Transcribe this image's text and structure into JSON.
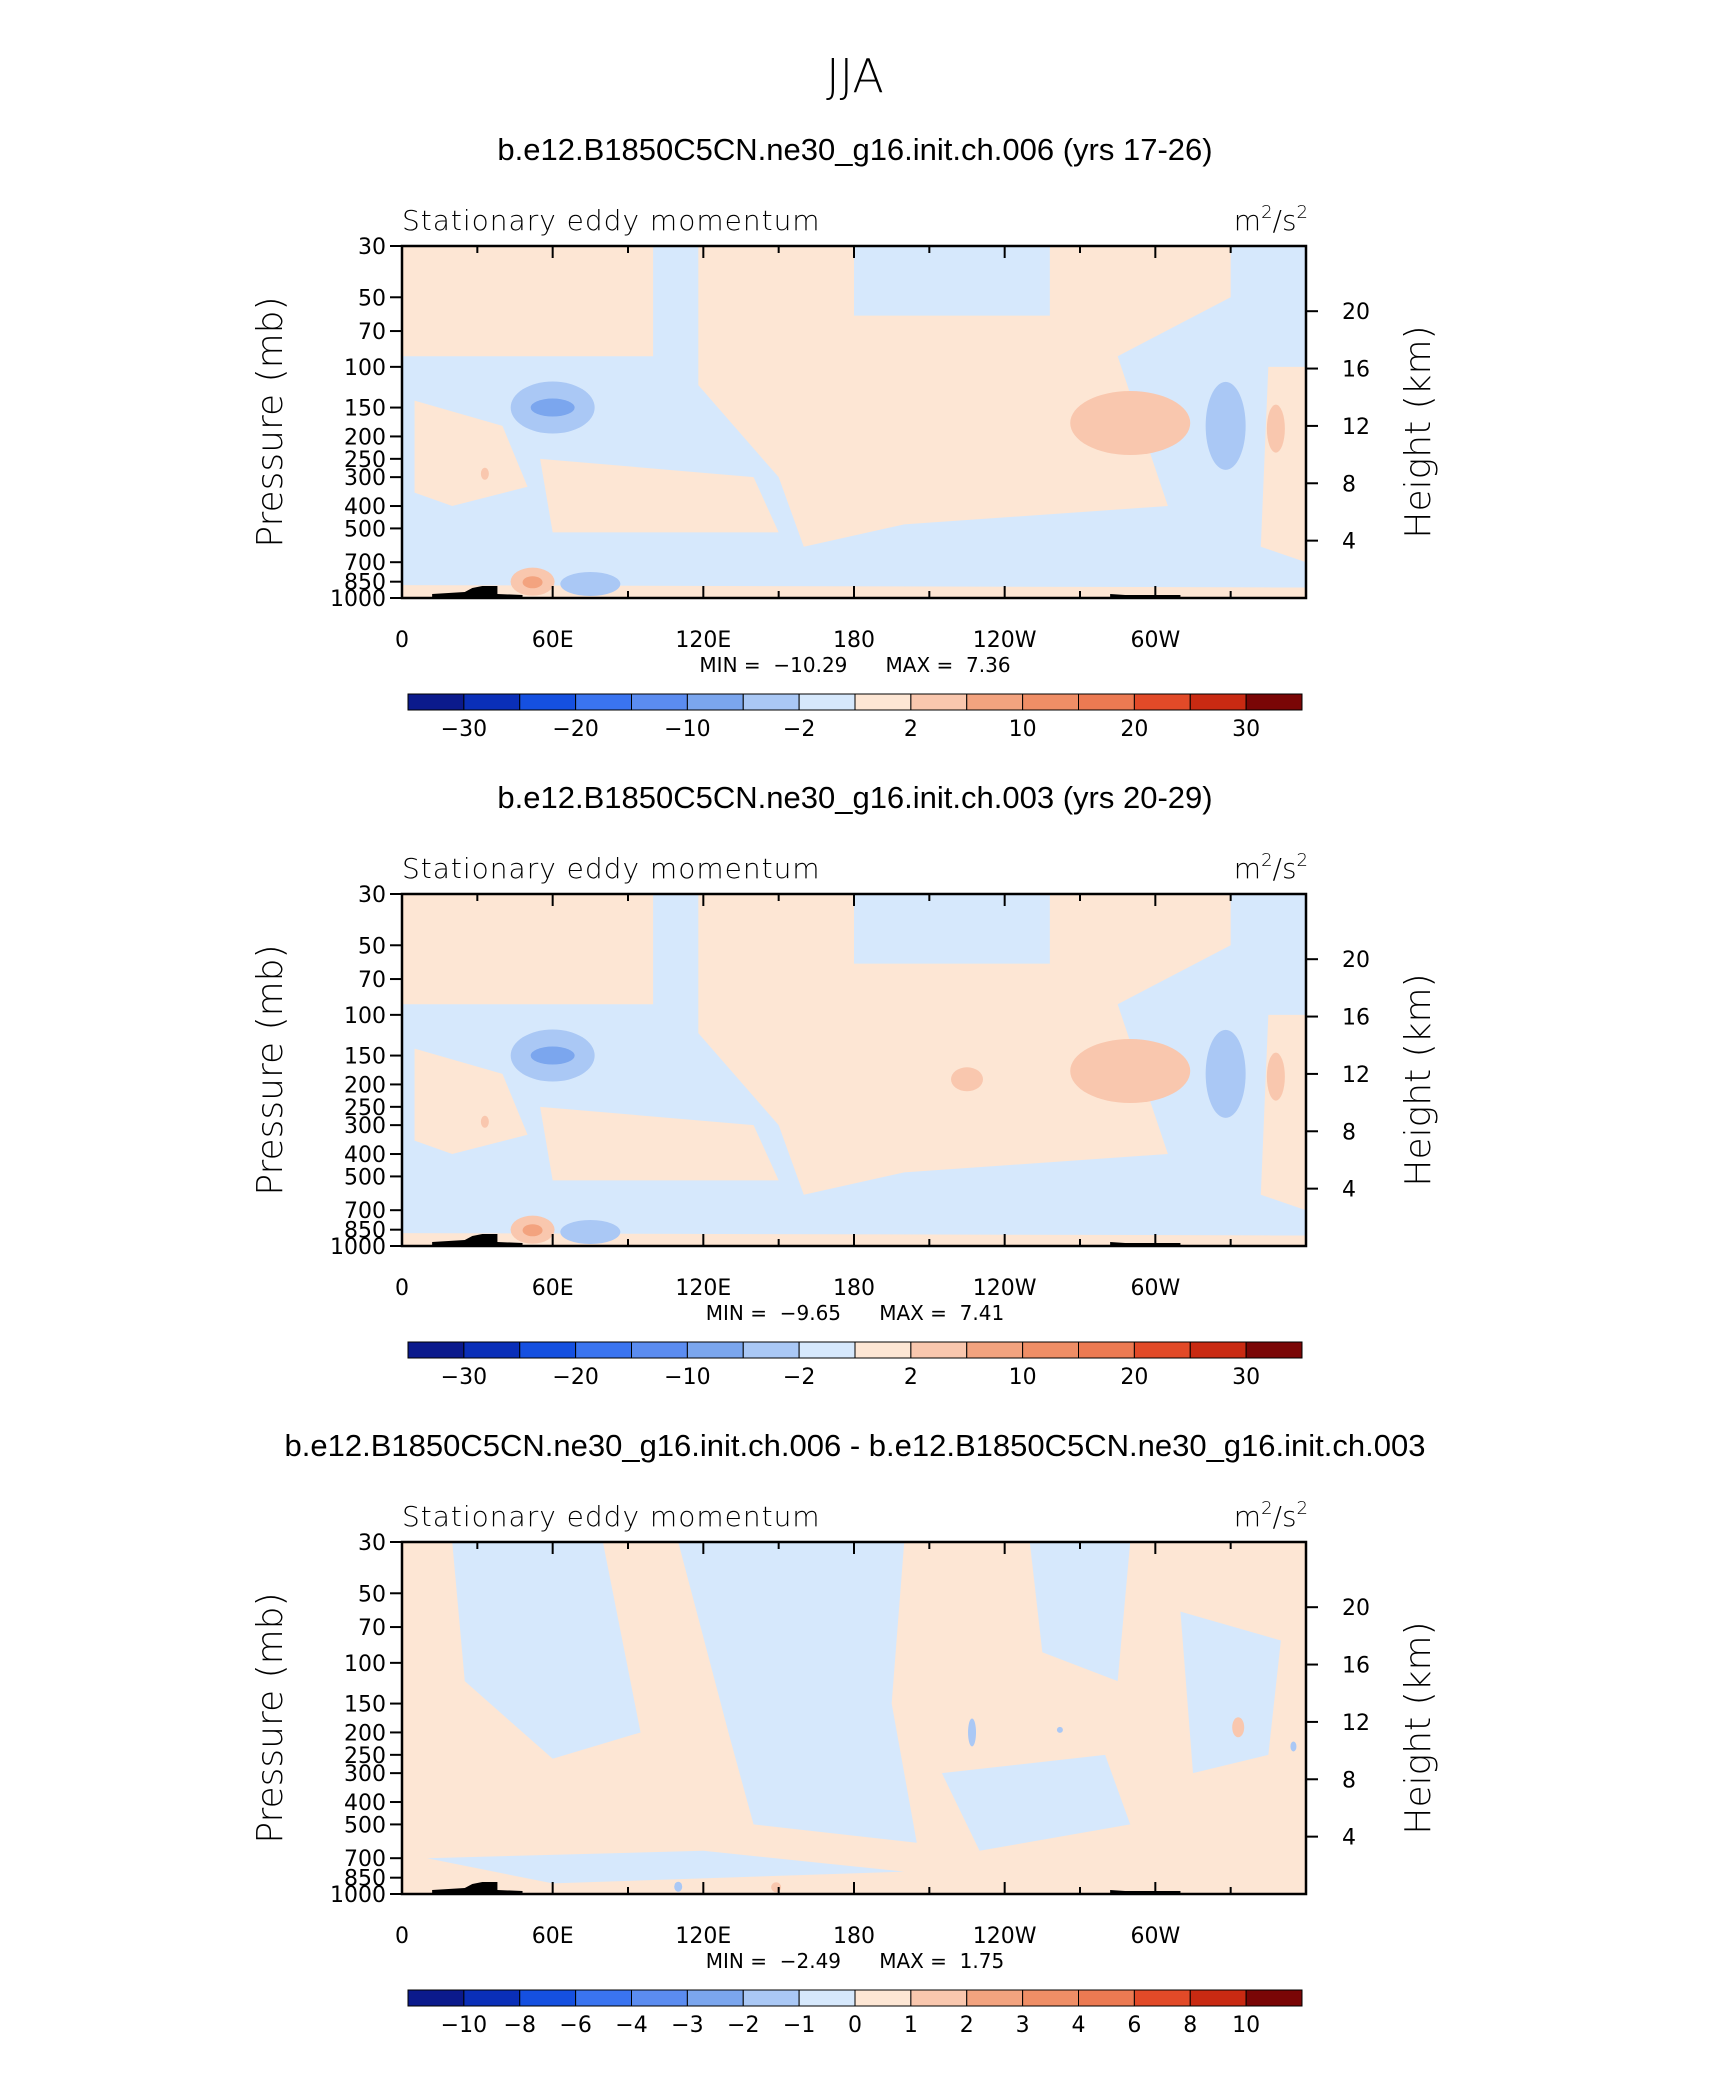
{
  "figure_title": "JJA",
  "chart_data": [
    {
      "type": "heatmap",
      "title": "b.e12.B1850C5CN.ne30_g16.init.ch.006 (yrs 17-26)",
      "left_label": "Stationary eddy momentum",
      "units_base": "m",
      "units_exp1": "2",
      "units_mid": "/s",
      "units_exp2": "2",
      "ylabel": "Pressure (mb)",
      "ylabel_right": "Height (km)",
      "x_ticks": [
        "0",
        "60E",
        "120E",
        "180",
        "120W",
        "60W"
      ],
      "y_ticks": [
        "30",
        "50",
        "70",
        "100",
        "150",
        "200",
        "250",
        "300",
        "400",
        "500",
        "700",
        "850",
        "1000"
      ],
      "y2_ticks": [
        "20",
        "16",
        "12",
        "8",
        "4"
      ],
      "min_label": "MIN =",
      "min_value": "−10.29",
      "max_label": "MAX =",
      "max_value": "7.36",
      "colorbar_labels": [
        "−30",
        "−20",
        "−10",
        "−2",
        "2",
        "10",
        "20",
        "30"
      ],
      "ylim": [
        1000,
        30
      ],
      "xlim": [
        0,
        360
      ]
    },
    {
      "type": "heatmap",
      "title": "b.e12.B1850C5CN.ne30_g16.init.ch.003 (yrs 20-29)",
      "left_label": "Stationary eddy momentum",
      "units_base": "m",
      "units_exp1": "2",
      "units_mid": "/s",
      "units_exp2": "2",
      "ylabel": "Pressure (mb)",
      "ylabel_right": "Height (km)",
      "x_ticks": [
        "0",
        "60E",
        "120E",
        "180",
        "120W",
        "60W"
      ],
      "y_ticks": [
        "30",
        "50",
        "70",
        "100",
        "150",
        "200",
        "250",
        "300",
        "400",
        "500",
        "700",
        "850",
        "1000"
      ],
      "y2_ticks": [
        "20",
        "16",
        "12",
        "8",
        "4"
      ],
      "min_label": "MIN =",
      "min_value": "−9.65",
      "max_label": "MAX =",
      "max_value": "7.41",
      "colorbar_labels": [
        "−30",
        "−20",
        "−10",
        "−2",
        "2",
        "10",
        "20",
        "30"
      ],
      "ylim": [
        1000,
        30
      ],
      "xlim": [
        0,
        360
      ]
    },
    {
      "type": "heatmap",
      "title": "b.e12.B1850C5CN.ne30_g16.init.ch.006 - b.e12.B1850C5CN.ne30_g16.init.ch.003",
      "left_label": "Stationary eddy momentum",
      "units_base": "m",
      "units_exp1": "2",
      "units_mid": "/s",
      "units_exp2": "2",
      "ylabel": "Pressure (mb)",
      "ylabel_right": "Height (km)",
      "x_ticks": [
        "0",
        "60E",
        "120E",
        "180",
        "120W",
        "60W"
      ],
      "y_ticks": [
        "30",
        "50",
        "70",
        "100",
        "150",
        "200",
        "250",
        "300",
        "400",
        "500",
        "700",
        "850",
        "1000"
      ],
      "y2_ticks": [
        "20",
        "16",
        "12",
        "8",
        "4"
      ],
      "min_label": "MIN =",
      "min_value": "−2.49",
      "max_label": "MAX =",
      "max_value": "1.75",
      "colorbar_labels": [
        "−10",
        "−8",
        "−6",
        "−4",
        "−3",
        "−2",
        "−1",
        "0",
        "1",
        "2",
        "3",
        "4",
        "6",
        "8",
        "10"
      ],
      "ylim": [
        1000,
        30
      ],
      "xlim": [
        0,
        360
      ]
    }
  ],
  "colors": {
    "neg_light": "#d6e8fc",
    "neg_mid": "#aac8f5",
    "neg_strong": "#7ba6ee",
    "neg_core": "#4f7fe6",
    "pos_light": "#fde6d4",
    "pos_mid": "#f9c7ae",
    "pos_strong": "#f3a37f",
    "pos_core": "#ec7a52",
    "palette": [
      "#0b1a8c",
      "#0a2fb8",
      "#1550e0",
      "#3a74f0",
      "#7ba6ee",
      "#aac8f5",
      "#d6e8fc",
      "#fde6d4",
      "#f9c7ae",
      "#f3a37f",
      "#ec7a52",
      "#e24a28",
      "#c92a12",
      "#a5160a",
      "#7a0606"
    ],
    "palette16": [
      "#0b1a8c",
      "#0a2fb8",
      "#1550e0",
      "#3a74f0",
      "#5b8cf0",
      "#7ba6ee",
      "#aac8f5",
      "#d6e8fc",
      "#fde6d4",
      "#f9c7ae",
      "#f3a37f",
      "#ef8e66",
      "#ec7a52",
      "#e24a28",
      "#c92a12",
      "#7a0606"
    ]
  }
}
